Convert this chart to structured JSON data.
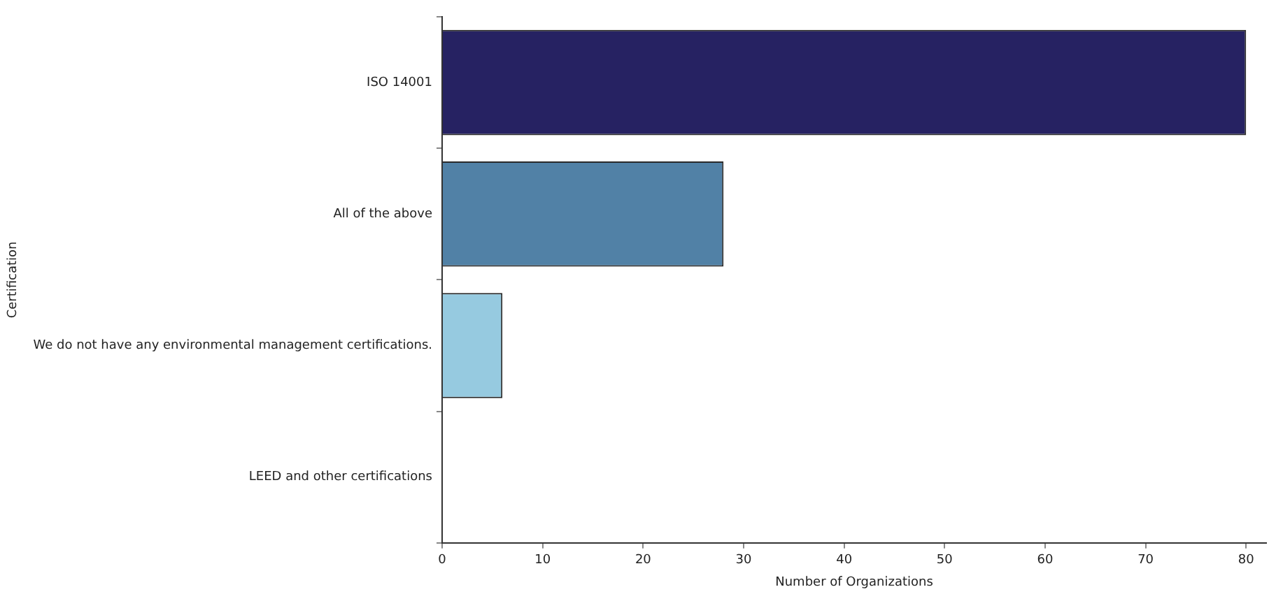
{
  "chart_data": {
    "type": "bar",
    "orientation": "horizontal",
    "categories": [
      "ISO 14001",
      "All of the above",
      "We do not have any environmental management certifications.",
      "LEED and other certifications"
    ],
    "values": [
      80,
      28,
      6,
      0
    ],
    "colors": [
      "#262262",
      "#5181a6",
      "#96cae0",
      "#d9eef5"
    ],
    "xlabel": "Number of Organizations",
    "ylabel": "Certification",
    "xlim": [
      0,
      82
    ],
    "xticks": [
      0,
      10,
      20,
      30,
      40,
      50,
      60,
      70,
      80
    ],
    "grid": false,
    "legend": false
  }
}
